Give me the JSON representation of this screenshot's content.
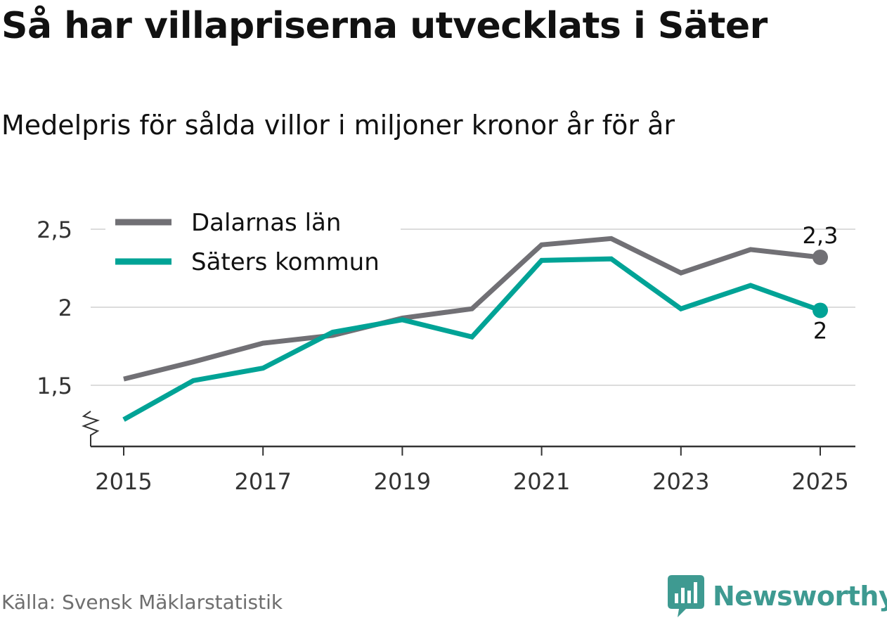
{
  "chart_data": {
    "type": "line",
    "title": "Så har villapriserna utvecklats i Säter",
    "subtitle": "Medelpris för sålda villor i miljoner kronor år för år",
    "x": [
      2015,
      2016,
      2017,
      2018,
      2019,
      2020,
      2021,
      2022,
      2023,
      2024,
      2025
    ],
    "x_tick_values": [
      2015,
      2017,
      2019,
      2021,
      2023,
      2025
    ],
    "x_tick_labels": [
      "2015",
      "2017",
      "2019",
      "2021",
      "2023",
      "2025"
    ],
    "y_tick_values": [
      1.5,
      2,
      2.5
    ],
    "y_tick_labels": [
      "1,5",
      "2",
      "2,5"
    ],
    "ylim": [
      1.1,
      2.6
    ],
    "xlim": [
      2014.5,
      2025.5
    ],
    "axis_break": true,
    "grid": true,
    "legend_position": "top-left",
    "xlabel": "",
    "ylabel": "",
    "series": [
      {
        "name": "Dalarnas län",
        "color": "#717075",
        "values": [
          1.54,
          1.65,
          1.77,
          1.82,
          1.93,
          1.99,
          2.4,
          2.44,
          2.22,
          2.37,
          2.32
        ],
        "end_label": "2,3"
      },
      {
        "name": "Säters kommun",
        "color": "#00a396",
        "values": [
          1.28,
          1.53,
          1.61,
          1.84,
          1.92,
          1.81,
          2.3,
          2.31,
          1.99,
          2.14,
          1.98
        ],
        "end_label": "2"
      }
    ]
  },
  "footer": {
    "source": "Källa: Svensk Mäklarstatistik",
    "brand": "Newsworthy",
    "brand_color": "#3e9a91"
  },
  "icons": {
    "brand_logo": "newsworthy-logo-icon"
  }
}
